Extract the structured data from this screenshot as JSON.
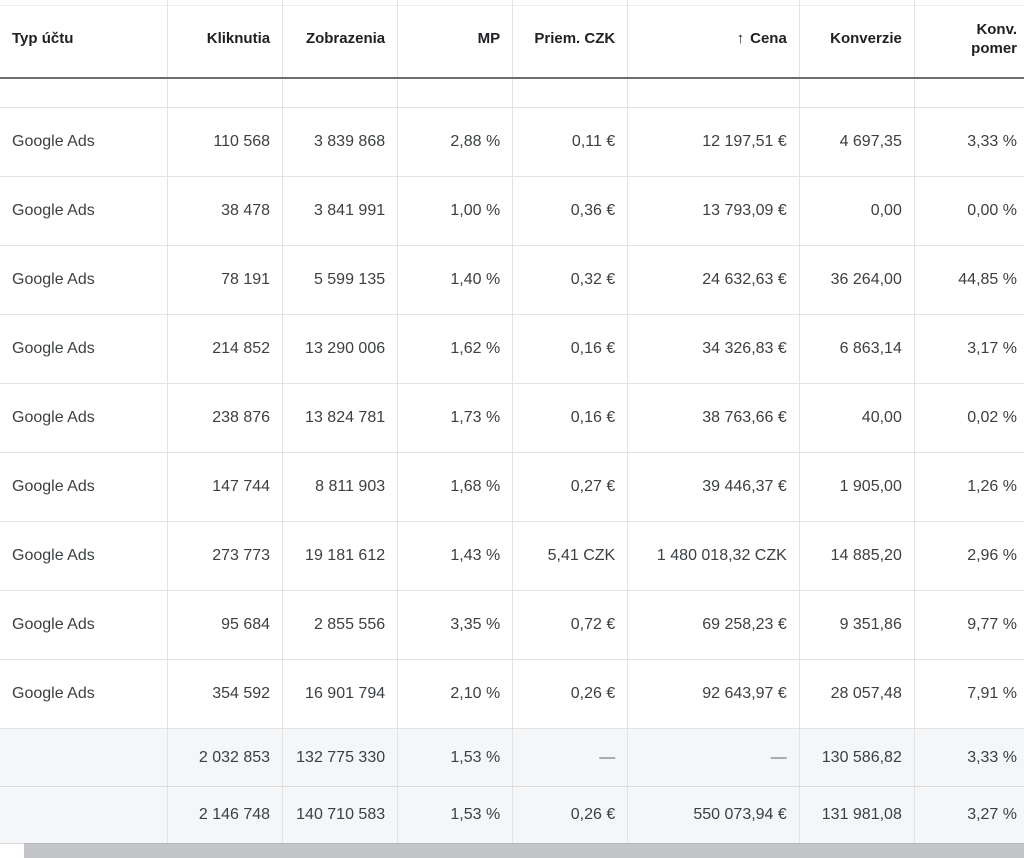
{
  "columns": {
    "account_type": "Typ účtu",
    "clicks": "Kliknutia",
    "impressions": "Zobrazenia",
    "ctr": "MP",
    "avg_cpc": "Priem. CZK",
    "cost": "Cena",
    "conversions": "Konverzie",
    "conv_rate_line1": "Konv.",
    "conv_rate_line2": "pomer"
  },
  "sort": {
    "column": "cost",
    "direction": "ascending",
    "icon": "arrow-up-icon"
  },
  "rows": [
    {
      "account_type": "Google Ads",
      "clicks": "110 568",
      "impressions": "3 839 868",
      "ctr": "2,88 %",
      "avg_cpc": "0,11 €",
      "cost": "12 197,51 €",
      "conversions": "4 697,35",
      "conv_rate": "3,33 %"
    },
    {
      "account_type": "Google Ads",
      "clicks": "38 478",
      "impressions": "3 841 991",
      "ctr": "1,00 %",
      "avg_cpc": "0,36 €",
      "cost": "13 793,09 €",
      "conversions": "0,00",
      "conv_rate": "0,00 %"
    },
    {
      "account_type": "Google Ads",
      "clicks": "78 191",
      "impressions": "5 599 135",
      "ctr": "1,40 %",
      "avg_cpc": "0,32 €",
      "cost": "24 632,63 €",
      "conversions": "36 264,00",
      "conv_rate": "44,85 %"
    },
    {
      "account_type": "Google Ads",
      "clicks": "214 852",
      "impressions": "13 290 006",
      "ctr": "1,62 %",
      "avg_cpc": "0,16 €",
      "cost": "34 326,83 €",
      "conversions": "6 863,14",
      "conv_rate": "3,17 %"
    },
    {
      "account_type": "Google Ads",
      "clicks": "238 876",
      "impressions": "13 824 781",
      "ctr": "1,73 %",
      "avg_cpc": "0,16 €",
      "cost": "38 763,66 €",
      "conversions": "40,00",
      "conv_rate": "0,02 %"
    },
    {
      "account_type": "Google Ads",
      "clicks": "147 744",
      "impressions": "8 811 903",
      "ctr": "1,68 %",
      "avg_cpc": "0,27 €",
      "cost": "39 446,37 €",
      "conversions": "1 905,00",
      "conv_rate": "1,26 %"
    },
    {
      "account_type": "Google Ads",
      "clicks": "273 773",
      "impressions": "19 181 612",
      "ctr": "1,43 %",
      "avg_cpc": "5,41 CZK",
      "cost": "1 480 018,32 CZK",
      "conversions": "14 885,20",
      "conv_rate": "2,96 %"
    },
    {
      "account_type": "Google Ads",
      "clicks": "95 684",
      "impressions": "2 855 556",
      "ctr": "3,35 %",
      "avg_cpc": "0,72 €",
      "cost": "69 258,23 €",
      "conversions": "9 351,86",
      "conv_rate": "9,77 %"
    },
    {
      "account_type": "Google Ads",
      "clicks": "354 592",
      "impressions": "16 901 794",
      "ctr": "2,10 %",
      "avg_cpc": "0,26 €",
      "cost": "92 643,97 €",
      "conversions": "28 057,48",
      "conv_rate": "7,91 %"
    }
  ],
  "totals": [
    {
      "account_type": "",
      "clicks": "2 032 853",
      "impressions": "132 775 330",
      "ctr": "1,53 %",
      "avg_cpc": "—",
      "cost": "—",
      "conversions": "130 586,82",
      "conv_rate": "3,33 %"
    },
    {
      "account_type": "",
      "clicks": "2 146 748",
      "impressions": "140 710 583",
      "ctr": "1,53 %",
      "avg_cpc": "0,26 €",
      "cost": "550 073,94 €",
      "conversions": "131 981,08",
      "conv_rate": "3,27 %"
    }
  ]
}
